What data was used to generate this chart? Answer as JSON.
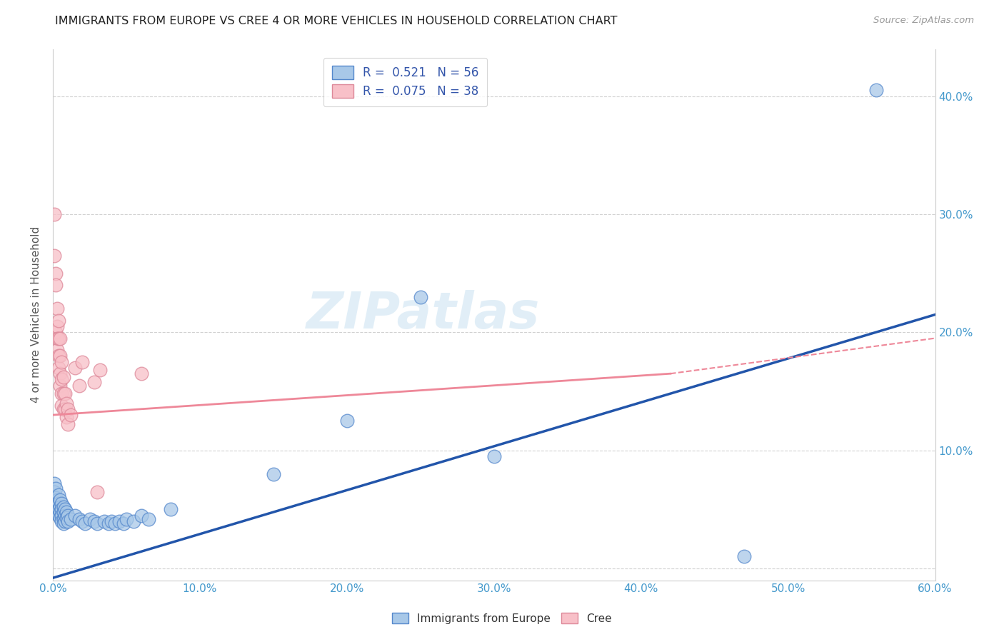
{
  "title": "IMMIGRANTS FROM EUROPE VS CREE 4 OR MORE VEHICLES IN HOUSEHOLD CORRELATION CHART",
  "source": "Source: ZipAtlas.com",
  "ylabel": "4 or more Vehicles in Household",
  "xlim": [
    0.0,
    0.6
  ],
  "ylim": [
    -0.01,
    0.44
  ],
  "xticks": [
    0.0,
    0.1,
    0.2,
    0.3,
    0.4,
    0.5,
    0.6
  ],
  "yticks": [
    0.0,
    0.1,
    0.2,
    0.3,
    0.4
  ],
  "xtick_labels": [
    "0.0%",
    "10.0%",
    "20.0%",
    "30.0%",
    "40.0%",
    "50.0%",
    "60.0%"
  ],
  "left_ytick_labels": [
    "",
    "",
    "",
    "",
    ""
  ],
  "right_ytick_labels": [
    "",
    "10.0%",
    "20.0%",
    "30.0%",
    "40.0%"
  ],
  "watermark": "ZIPatlas",
  "blue_color": "#a8c8e8",
  "blue_edge_color": "#5588cc",
  "pink_color": "#f8c0c8",
  "pink_edge_color": "#dd8899",
  "blue_line_color": "#2255aa",
  "pink_line_color": "#ee8899",
  "blue_line": [
    [
      0.0,
      -0.008
    ],
    [
      0.6,
      0.215
    ]
  ],
  "pink_line": [
    [
      0.0,
      0.13
    ],
    [
      0.42,
      0.165
    ]
  ],
  "pink_line_dashed": [
    [
      0.42,
      0.165
    ],
    [
      0.6,
      0.195
    ]
  ],
  "blue_scatter": [
    [
      0.001,
      0.072
    ],
    [
      0.001,
      0.065
    ],
    [
      0.002,
      0.068
    ],
    [
      0.002,
      0.06
    ],
    [
      0.002,
      0.055
    ],
    [
      0.003,
      0.058
    ],
    [
      0.003,
      0.052
    ],
    [
      0.003,
      0.048
    ],
    [
      0.004,
      0.062
    ],
    [
      0.004,
      0.055
    ],
    [
      0.004,
      0.05
    ],
    [
      0.004,
      0.045
    ],
    [
      0.005,
      0.058
    ],
    [
      0.005,
      0.052
    ],
    [
      0.005,
      0.048
    ],
    [
      0.005,
      0.043
    ],
    [
      0.006,
      0.055
    ],
    [
      0.006,
      0.05
    ],
    [
      0.006,
      0.045
    ],
    [
      0.006,
      0.04
    ],
    [
      0.007,
      0.052
    ],
    [
      0.007,
      0.048
    ],
    [
      0.007,
      0.042
    ],
    [
      0.007,
      0.038
    ],
    [
      0.008,
      0.05
    ],
    [
      0.008,
      0.045
    ],
    [
      0.008,
      0.04
    ],
    [
      0.009,
      0.048
    ],
    [
      0.009,
      0.043
    ],
    [
      0.01,
      0.045
    ],
    [
      0.01,
      0.04
    ],
    [
      0.012,
      0.042
    ],
    [
      0.015,
      0.045
    ],
    [
      0.018,
      0.042
    ],
    [
      0.02,
      0.04
    ],
    [
      0.022,
      0.038
    ],
    [
      0.025,
      0.042
    ],
    [
      0.028,
      0.04
    ],
    [
      0.03,
      0.038
    ],
    [
      0.035,
      0.04
    ],
    [
      0.038,
      0.038
    ],
    [
      0.04,
      0.04
    ],
    [
      0.042,
      0.038
    ],
    [
      0.045,
      0.04
    ],
    [
      0.048,
      0.038
    ],
    [
      0.05,
      0.042
    ],
    [
      0.055,
      0.04
    ],
    [
      0.06,
      0.045
    ],
    [
      0.065,
      0.042
    ],
    [
      0.08,
      0.05
    ],
    [
      0.15,
      0.08
    ],
    [
      0.2,
      0.125
    ],
    [
      0.25,
      0.23
    ],
    [
      0.3,
      0.095
    ],
    [
      0.47,
      0.01
    ],
    [
      0.56,
      0.405
    ]
  ],
  "pink_scatter": [
    [
      0.001,
      0.3
    ],
    [
      0.001,
      0.265
    ],
    [
      0.002,
      0.25
    ],
    [
      0.002,
      0.24
    ],
    [
      0.002,
      0.2
    ],
    [
      0.003,
      0.22
    ],
    [
      0.003,
      0.205
    ],
    [
      0.003,
      0.195
    ],
    [
      0.003,
      0.185
    ],
    [
      0.004,
      0.21
    ],
    [
      0.004,
      0.195
    ],
    [
      0.004,
      0.18
    ],
    [
      0.004,
      0.17
    ],
    [
      0.005,
      0.195
    ],
    [
      0.005,
      0.18
    ],
    [
      0.005,
      0.165
    ],
    [
      0.005,
      0.155
    ],
    [
      0.006,
      0.175
    ],
    [
      0.006,
      0.16
    ],
    [
      0.006,
      0.148
    ],
    [
      0.006,
      0.138
    ],
    [
      0.007,
      0.162
    ],
    [
      0.007,
      0.148
    ],
    [
      0.007,
      0.135
    ],
    [
      0.008,
      0.148
    ],
    [
      0.008,
      0.135
    ],
    [
      0.009,
      0.14
    ],
    [
      0.009,
      0.128
    ],
    [
      0.01,
      0.135
    ],
    [
      0.01,
      0.122
    ],
    [
      0.012,
      0.13
    ],
    [
      0.015,
      0.17
    ],
    [
      0.018,
      0.155
    ],
    [
      0.02,
      0.175
    ],
    [
      0.028,
      0.158
    ],
    [
      0.03,
      0.065
    ],
    [
      0.032,
      0.168
    ],
    [
      0.06,
      0.165
    ]
  ]
}
